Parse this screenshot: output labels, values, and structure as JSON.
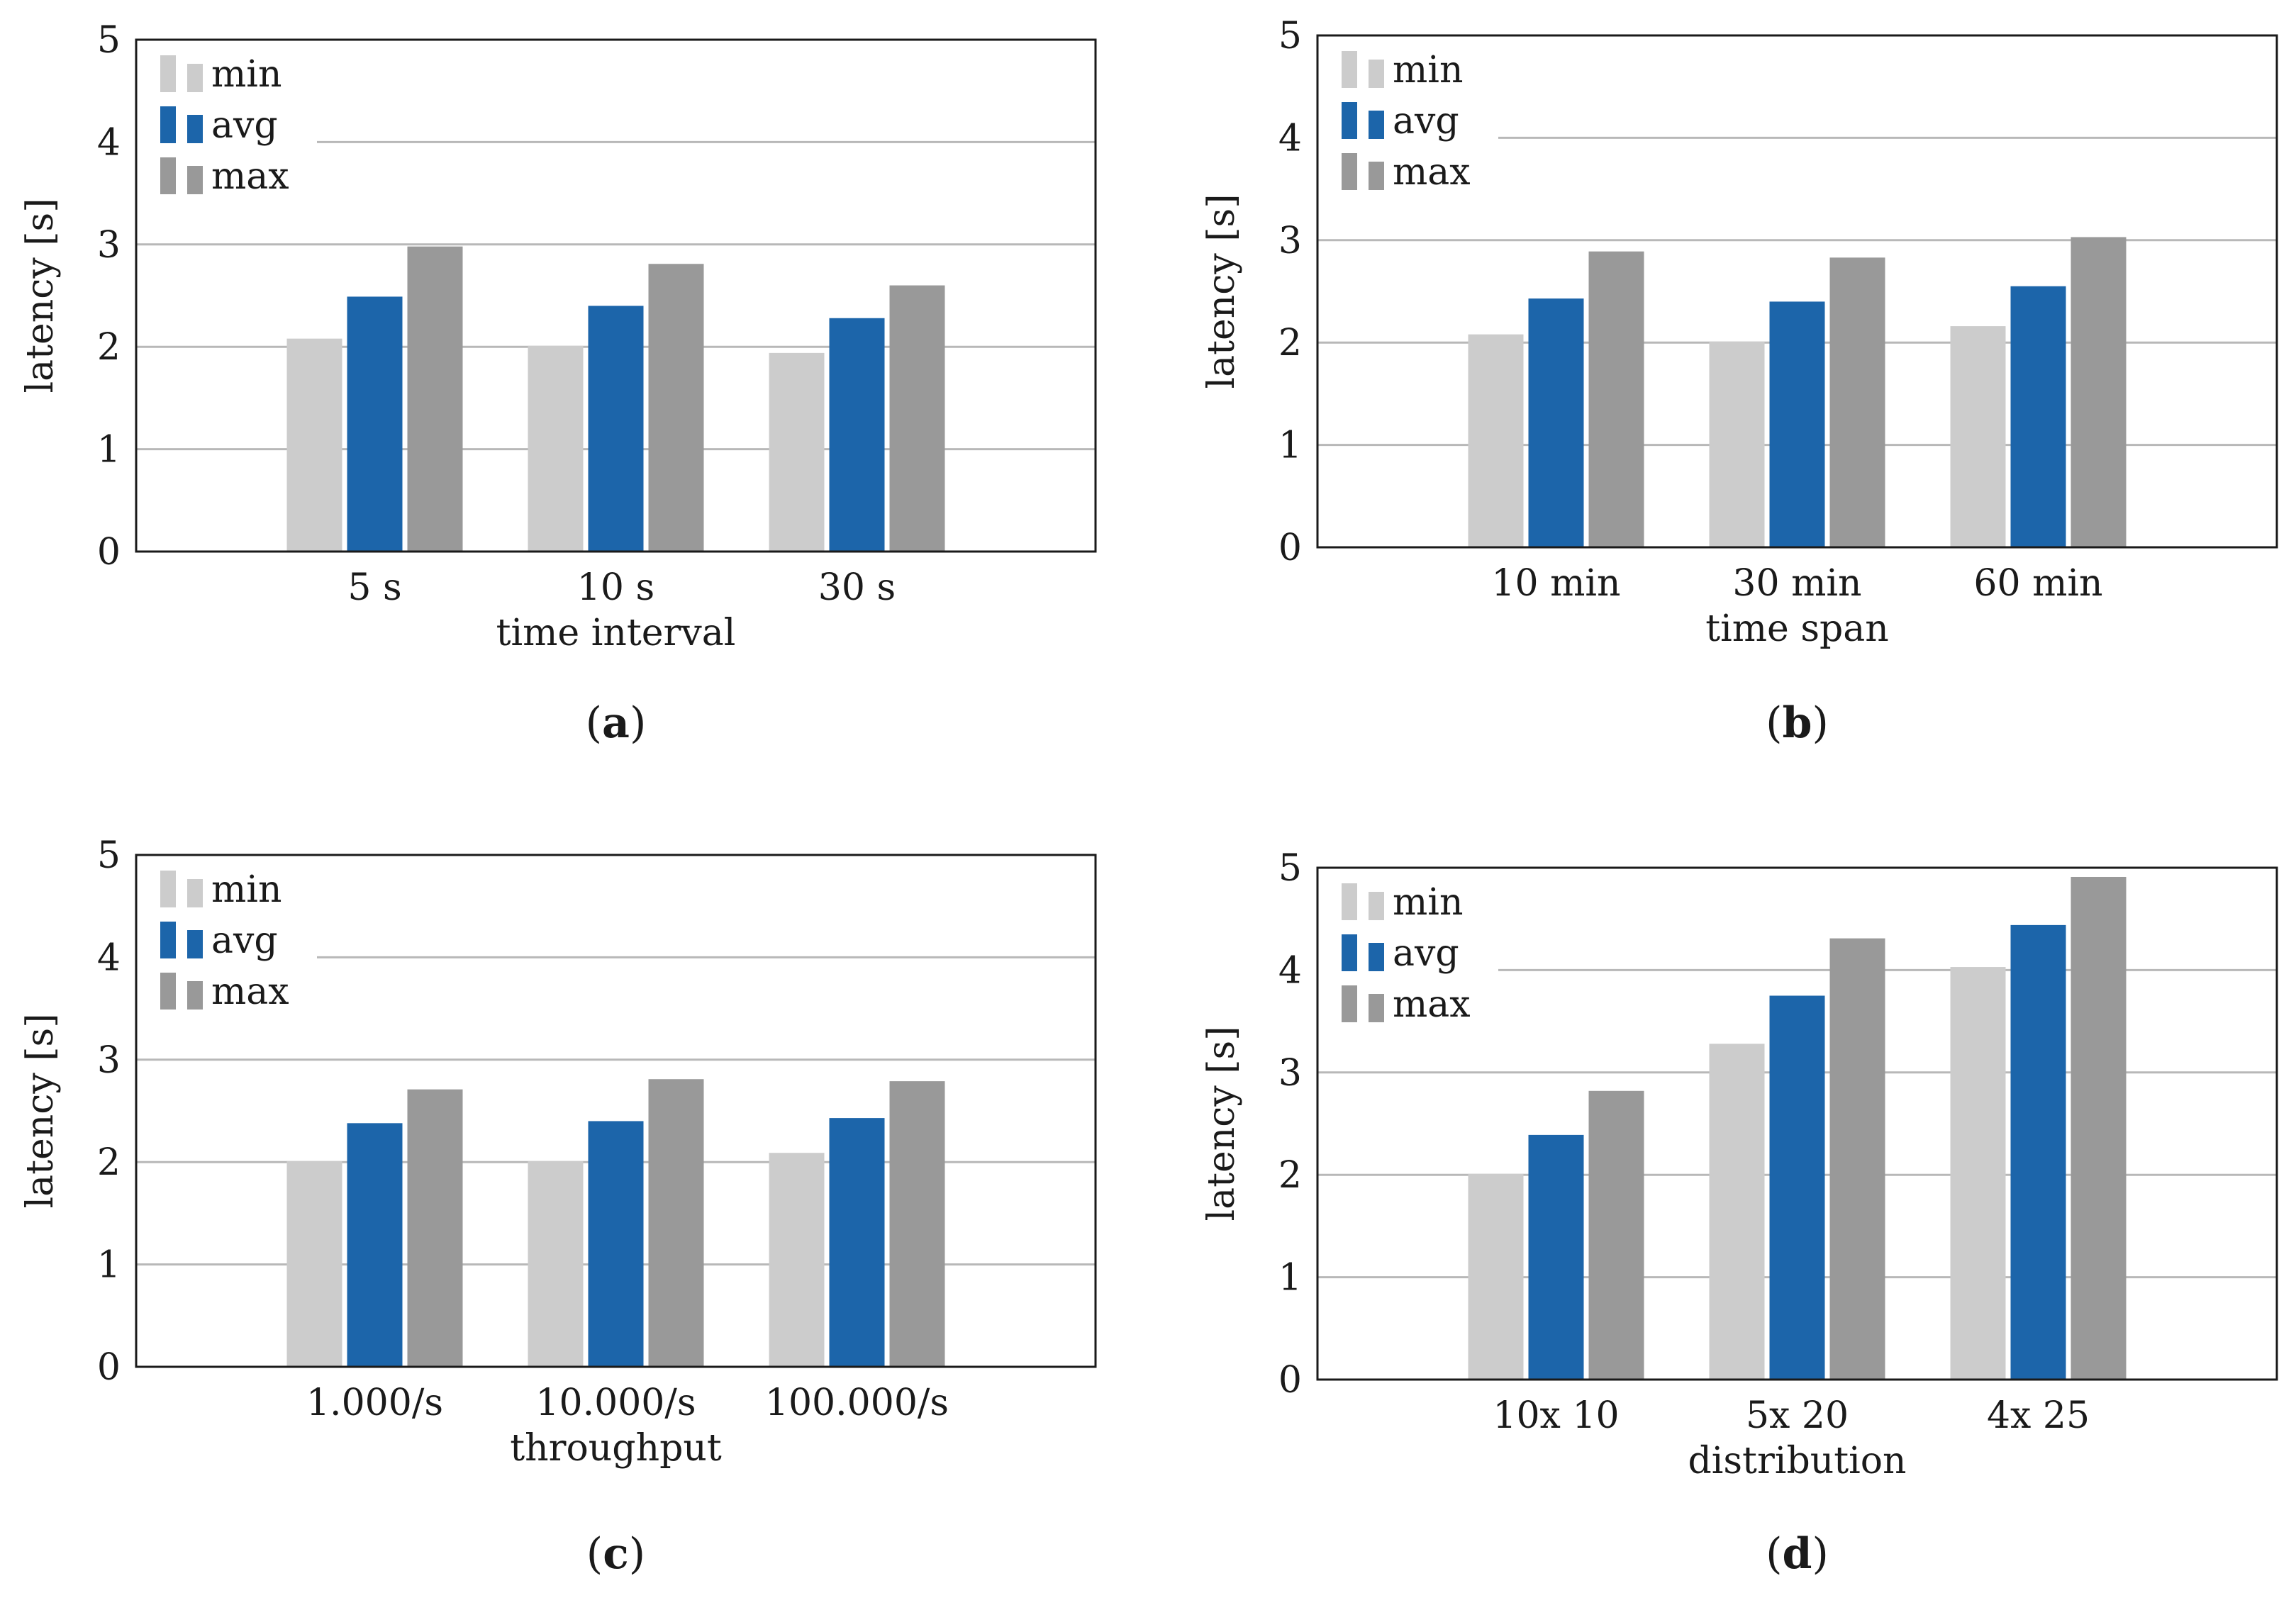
{
  "chart_data": [
    {
      "type": "bar",
      "panel": "a",
      "caption": "a",
      "title": "",
      "xlabel": "time interval",
      "ylabel": "latency [s]",
      "ylim": [
        0,
        5
      ],
      "yticks": [
        "0",
        "1",
        "2",
        "3",
        "4",
        "5"
      ],
      "grid": true,
      "legend_position": "top-left",
      "categories": [
        "5 s",
        "10 s",
        "30 s"
      ],
      "series": [
        {
          "name": "min",
          "values": [
            2.08,
            2.01,
            1.94
          ]
        },
        {
          "name": "avg",
          "values": [
            2.49,
            2.4,
            2.28
          ]
        },
        {
          "name": "max",
          "values": [
            2.98,
            2.81,
            2.6
          ]
        }
      ]
    },
    {
      "type": "bar",
      "panel": "b",
      "caption": "b",
      "title": "",
      "xlabel": "time span",
      "ylabel": "latency [s]",
      "ylim": [
        0,
        5
      ],
      "yticks": [
        "0",
        "1",
        "2",
        "3",
        "4",
        "5"
      ],
      "grid": true,
      "legend_position": "top-left",
      "categories": [
        "10 min",
        "30 min",
        "60 min"
      ],
      "series": [
        {
          "name": "min",
          "values": [
            2.08,
            2.01,
            2.16
          ]
        },
        {
          "name": "avg",
          "values": [
            2.43,
            2.4,
            2.55
          ]
        },
        {
          "name": "max",
          "values": [
            2.89,
            2.83,
            3.03
          ]
        }
      ]
    },
    {
      "type": "bar",
      "panel": "c",
      "caption": "c",
      "title": "",
      "xlabel": "throughput",
      "ylabel": "latency [s]",
      "ylim": [
        0,
        5
      ],
      "yticks": [
        "0",
        "1",
        "2",
        "3",
        "4",
        "5"
      ],
      "grid": true,
      "legend_position": "top-left",
      "categories": [
        "1.000/s",
        "10.000/s",
        "100.000/s"
      ],
      "series": [
        {
          "name": "min",
          "values": [
            2.01,
            2.01,
            2.09
          ]
        },
        {
          "name": "avg",
          "values": [
            2.38,
            2.4,
            2.43
          ]
        },
        {
          "name": "max",
          "values": [
            2.71,
            2.81,
            2.79
          ]
        }
      ]
    },
    {
      "type": "bar",
      "panel": "d",
      "caption": "d",
      "title": "",
      "xlabel": "distribution",
      "ylabel": "latency [s]",
      "ylim": [
        0,
        5
      ],
      "yticks": [
        "0",
        "1",
        "2",
        "3",
        "4",
        "5"
      ],
      "grid": true,
      "legend_position": "top-left",
      "categories": [
        "10x 10",
        "5x 20",
        "4x 25"
      ],
      "series": [
        {
          "name": "min",
          "values": [
            2.01,
            3.28,
            4.03
          ]
        },
        {
          "name": "avg",
          "values": [
            2.39,
            3.75,
            4.44
          ]
        },
        {
          "name": "max",
          "values": [
            2.82,
            4.31,
            4.91
          ]
        }
      ]
    }
  ],
  "colors": {
    "min": "#cccccc",
    "avg": "#1c65aa",
    "max": "#999999",
    "grid": "#b8b8b8",
    "axis": "#1a1a1a",
    "background": "#ffffff"
  }
}
